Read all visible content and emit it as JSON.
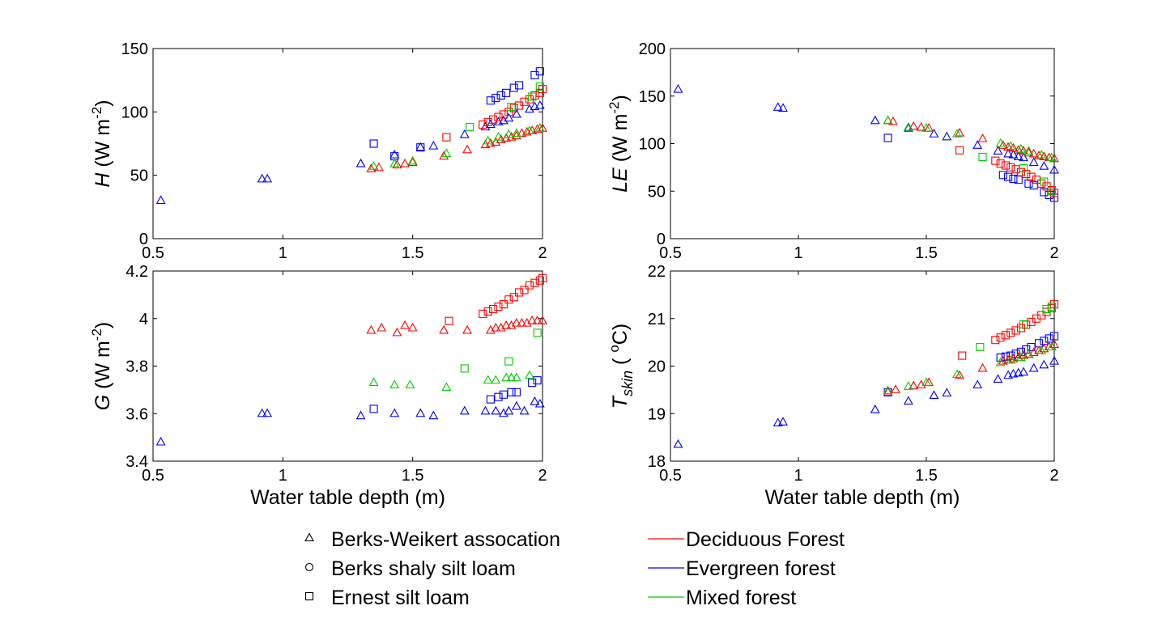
{
  "legend": {
    "soils": [
      {
        "label": "Berks-Weikert assocation",
        "marker": "triangle"
      },
      {
        "label": "Berks shaly silt loam",
        "marker": "circle"
      },
      {
        "label": "Ernest silt loam",
        "marker": "square"
      }
    ],
    "vegetation": [
      {
        "label": "Deciduous Forest",
        "color": "#ff0000"
      },
      {
        "label": "Evergreen forest",
        "color": "#0000ff"
      },
      {
        "label": "Mixed forest",
        "color": "#00cc00"
      }
    ]
  },
  "chart_data": [
    {
      "id": "H",
      "type": "scatter",
      "ylabel_sym": "H",
      "ylabel_unit": " (W m",
      "ylabel_exp": "-2",
      "ylabel_close": ")",
      "xlabel": "",
      "xlim": [
        0.5,
        2
      ],
      "ylim": [
        0,
        150
      ],
      "xticks": [
        0.5,
        1,
        1.5,
        2
      ],
      "xtick_labels": [
        "0.5",
        "1",
        "1.5",
        "2"
      ],
      "yticks": [
        0,
        50,
        100,
        150
      ],
      "ytick_labels": [
        "0",
        "50",
        "100",
        "150"
      ],
      "series": [
        {
          "marker": "triangle",
          "color": "#0000ff",
          "x": [
            0.53,
            0.92,
            0.94,
            1.3,
            1.43,
            1.53,
            1.58,
            1.7,
            1.78,
            1.8,
            1.83,
            1.85,
            1.87,
            1.9,
            1.95,
            1.97,
            1.99
          ],
          "y": [
            30,
            47,
            47,
            59,
            66,
            72,
            73,
            82,
            88,
            90,
            92,
            93,
            95,
            98,
            102,
            104,
            105
          ]
        },
        {
          "marker": "square",
          "color": "#0000ff",
          "x": [
            1.35,
            1.43,
            1.53,
            1.8,
            1.82,
            1.84,
            1.86,
            1.89,
            1.91,
            1.97,
            1.99
          ],
          "y": [
            75,
            65,
            72,
            109,
            111,
            113,
            115,
            119,
            121,
            129,
            132
          ]
        },
        {
          "marker": "triangle",
          "color": "#ff0000",
          "x": [
            1.34,
            1.37,
            1.44,
            1.47,
            1.5,
            1.62,
            1.71,
            1.78,
            1.8,
            1.82,
            1.84,
            1.86,
            1.88,
            1.9,
            1.92,
            1.94,
            1.96,
            1.98,
            2.0
          ],
          "y": [
            55,
            56,
            58,
            59,
            60,
            65,
            70,
            74,
            75,
            76,
            78,
            79,
            80,
            81,
            83,
            84,
            85,
            86,
            87
          ]
        },
        {
          "marker": "square",
          "color": "#ff0000",
          "x": [
            1.63,
            1.77,
            1.79,
            1.81,
            1.83,
            1.85,
            1.87,
            1.89,
            1.91,
            1.93,
            1.95,
            1.97,
            1.99,
            2.0
          ],
          "y": [
            80,
            90,
            92,
            94,
            96,
            98,
            100,
            103,
            105,
            108,
            110,
            113,
            115,
            118
          ]
        },
        {
          "marker": "triangle",
          "color": "#00cc00",
          "x": [
            1.35,
            1.43,
            1.5,
            1.63,
            1.79,
            1.83,
            1.87,
            1.9,
            1.95,
            1.99
          ],
          "y": [
            57,
            59,
            61,
            67,
            77,
            80,
            82,
            83,
            85,
            87
          ]
        },
        {
          "marker": "square",
          "color": "#00cc00",
          "x": [
            1.72,
            1.88,
            1.96,
            1.99
          ],
          "y": [
            88,
            104,
            112,
            120
          ]
        }
      ]
    },
    {
      "id": "LE",
      "type": "scatter",
      "ylabel_sym": "LE",
      "ylabel_unit": " (W m",
      "ylabel_exp": "-2",
      "ylabel_close": ")",
      "xlabel": "",
      "xlim": [
        0.5,
        2
      ],
      "ylim": [
        0,
        200
      ],
      "xticks": [
        0.5,
        1,
        1.5,
        2
      ],
      "xtick_labels": [
        "0.5",
        "1",
        "1.5",
        "2"
      ],
      "yticks": [
        0,
        50,
        100,
        150,
        200
      ],
      "ytick_labels": [
        "0",
        "50",
        "100",
        "150",
        "200"
      ],
      "series": [
        {
          "marker": "triangle",
          "color": "#0000ff",
          "x": [
            0.53,
            0.92,
            0.94,
            1.3,
            1.43,
            1.53,
            1.58,
            1.7,
            1.78,
            1.82,
            1.84,
            1.86,
            1.88,
            1.92,
            1.96,
            2.0
          ],
          "y": [
            157,
            138,
            137,
            124,
            116,
            110,
            107,
            98,
            92,
            89,
            88,
            86,
            85,
            80,
            76,
            72
          ]
        },
        {
          "marker": "square",
          "color": "#0000ff",
          "x": [
            1.35,
            1.8,
            1.82,
            1.84,
            1.86,
            1.9,
            1.92,
            1.96,
            1.98,
            2.0
          ],
          "y": [
            106,
            67,
            65,
            63,
            62,
            58,
            56,
            49,
            46,
            43
          ]
        },
        {
          "marker": "triangle",
          "color": "#ff0000",
          "x": [
            1.35,
            1.37,
            1.45,
            1.48,
            1.51,
            1.63,
            1.72,
            1.8,
            1.82,
            1.84,
            1.86,
            1.88,
            1.9,
            1.92,
            1.94,
            1.96,
            1.98,
            2.0
          ],
          "y": [
            124,
            123,
            118,
            117,
            116,
            111,
            105,
            98,
            96,
            95,
            93,
            92,
            90,
            89,
            87,
            86,
            85,
            84
          ]
        },
        {
          "marker": "square",
          "color": "#ff0000",
          "x": [
            1.63,
            1.77,
            1.79,
            1.81,
            1.83,
            1.85,
            1.87,
            1.89,
            1.91,
            1.93,
            1.95,
            1.97,
            1.99,
            2.0
          ],
          "y": [
            93,
            82,
            79,
            77,
            75,
            73,
            70,
            68,
            65,
            62,
            58,
            55,
            51,
            48
          ]
        },
        {
          "marker": "triangle",
          "color": "#00cc00",
          "x": [
            1.35,
            1.43,
            1.5,
            1.62,
            1.79,
            1.83,
            1.87,
            1.9,
            1.95,
            1.99
          ],
          "y": [
            124,
            117,
            116,
            110,
            100,
            97,
            94,
            92,
            88,
            85
          ]
        },
        {
          "marker": "square",
          "color": "#00cc00",
          "x": [
            1.72,
            1.88,
            1.96,
            1.99
          ],
          "y": [
            86,
            74,
            60,
            50
          ]
        }
      ]
    },
    {
      "id": "G",
      "type": "scatter",
      "ylabel_sym": "G",
      "ylabel_unit": " (W m",
      "ylabel_exp": "-2",
      "ylabel_close": ")",
      "xlabel": "Water table depth (m)",
      "xlim": [
        0.5,
        2
      ],
      "ylim": [
        3.4,
        4.2
      ],
      "xticks": [
        0.5,
        1,
        1.5,
        2
      ],
      "xtick_labels": [
        "0.5",
        "1",
        "1.5",
        "2"
      ],
      "yticks": [
        3.4,
        3.6,
        3.8,
        4.0,
        4.2
      ],
      "ytick_labels": [
        "3.4",
        "3.6",
        "3.8",
        "4",
        "4.2"
      ],
      "series": [
        {
          "marker": "triangle",
          "color": "#0000ff",
          "x": [
            0.53,
            0.92,
            0.94,
            1.3,
            1.43,
            1.53,
            1.58,
            1.7,
            1.78,
            1.82,
            1.85,
            1.87,
            1.9,
            1.93,
            1.97,
            1.99
          ],
          "y": [
            3.48,
            3.6,
            3.6,
            3.59,
            3.6,
            3.6,
            3.59,
            3.61,
            3.61,
            3.61,
            3.6,
            3.61,
            3.63,
            3.61,
            3.65,
            3.64
          ]
        },
        {
          "marker": "square",
          "color": "#0000ff",
          "x": [
            1.35,
            1.8,
            1.83,
            1.85,
            1.88,
            1.9,
            1.96,
            1.98
          ],
          "y": [
            3.62,
            3.66,
            3.67,
            3.68,
            3.69,
            3.69,
            3.73,
            3.74
          ]
        },
        {
          "marker": "triangle",
          "color": "#ff0000",
          "x": [
            1.34,
            1.38,
            1.44,
            1.47,
            1.5,
            1.62,
            1.71,
            1.8,
            1.82,
            1.84,
            1.86,
            1.88,
            1.9,
            1.92,
            1.94,
            1.96,
            1.98,
            2.0
          ],
          "y": [
            3.95,
            3.96,
            3.94,
            3.97,
            3.96,
            3.95,
            3.95,
            3.95,
            3.96,
            3.96,
            3.97,
            3.97,
            3.98,
            3.98,
            3.98,
            3.99,
            3.99,
            3.99
          ]
        },
        {
          "marker": "square",
          "color": "#ff0000",
          "x": [
            1.64,
            1.77,
            1.79,
            1.81,
            1.83,
            1.85,
            1.87,
            1.89,
            1.91,
            1.93,
            1.95,
            1.97,
            1.99,
            2.0
          ],
          "y": [
            3.99,
            4.02,
            4.03,
            4.04,
            4.05,
            4.06,
            4.08,
            4.09,
            4.11,
            4.12,
            4.14,
            4.15,
            4.16,
            4.17
          ]
        },
        {
          "marker": "triangle",
          "color": "#00cc00",
          "x": [
            1.35,
            1.43,
            1.49,
            1.63,
            1.79,
            1.82,
            1.86,
            1.88,
            1.9,
            1.95
          ],
          "y": [
            3.73,
            3.72,
            3.72,
            3.71,
            3.74,
            3.74,
            3.75,
            3.75,
            3.75,
            3.76
          ]
        },
        {
          "marker": "square",
          "color": "#00cc00",
          "x": [
            1.7,
            1.87,
            1.98
          ],
          "y": [
            3.79,
            3.82,
            3.94
          ]
        }
      ]
    },
    {
      "id": "Tskin",
      "type": "scatter",
      "ylabel_sym": "T",
      "ylabel_sub": "skin",
      "ylabel_unit": " ( ",
      "ylabel_exp": "o",
      "ylabel_close": "C)",
      "xlabel": "Water table depth (m)",
      "xlim": [
        0.5,
        2
      ],
      "ylim": [
        18,
        22
      ],
      "xticks": [
        0.5,
        1,
        1.5,
        2
      ],
      "xtick_labels": [
        "0.5",
        "1",
        "1.5",
        "2"
      ],
      "yticks": [
        18,
        19,
        20,
        21,
        22
      ],
      "ytick_labels": [
        "18",
        "19",
        "20",
        "21",
        "22"
      ],
      "series": [
        {
          "marker": "triangle",
          "color": "#0000ff",
          "x": [
            0.53,
            0.92,
            0.94,
            1.3,
            1.43,
            1.53,
            1.58,
            1.7,
            1.78,
            1.82,
            1.84,
            1.86,
            1.88,
            1.92,
            1.96,
            2.0
          ],
          "y": [
            18.35,
            18.8,
            18.82,
            19.08,
            19.26,
            19.38,
            19.43,
            19.6,
            19.72,
            19.8,
            19.83,
            19.85,
            19.87,
            19.95,
            20.02,
            20.1
          ]
        },
        {
          "marker": "square",
          "color": "#0000ff",
          "x": [
            1.35,
            1.79,
            1.81,
            1.83,
            1.85,
            1.87,
            1.89,
            1.91,
            1.94,
            1.96,
            1.98,
            2.0
          ],
          "y": [
            19.45,
            20.18,
            20.2,
            20.22,
            20.26,
            20.3,
            20.35,
            20.4,
            20.48,
            20.53,
            20.58,
            20.63
          ]
        },
        {
          "marker": "triangle",
          "color": "#ff0000",
          "x": [
            1.35,
            1.38,
            1.45,
            1.48,
            1.51,
            1.63,
            1.72,
            1.8,
            1.82,
            1.84,
            1.86,
            1.88,
            1.9,
            1.92,
            1.94,
            1.96,
            1.98,
            2.0
          ],
          "y": [
            19.45,
            19.5,
            19.58,
            19.6,
            19.65,
            19.8,
            19.95,
            20.1,
            20.12,
            20.15,
            20.18,
            20.22,
            20.25,
            20.28,
            20.32,
            20.36,
            20.4,
            20.45
          ]
        },
        {
          "marker": "square",
          "color": "#ff0000",
          "x": [
            1.64,
            1.77,
            1.79,
            1.81,
            1.83,
            1.85,
            1.87,
            1.89,
            1.91,
            1.93,
            1.95,
            1.97,
            1.99,
            2.0
          ],
          "y": [
            20.22,
            20.55,
            20.6,
            20.65,
            20.7,
            20.75,
            20.8,
            20.87,
            20.93,
            21.0,
            21.07,
            21.14,
            21.22,
            21.3
          ]
        },
        {
          "marker": "triangle",
          "color": "#00cc00",
          "x": [
            1.35,
            1.43,
            1.5,
            1.62,
            1.79,
            1.83,
            1.87,
            1.9,
            1.95,
            1.99
          ],
          "y": [
            19.48,
            19.57,
            19.65,
            19.82,
            20.07,
            20.12,
            20.18,
            20.24,
            20.32,
            20.4
          ]
        },
        {
          "marker": "square",
          "color": "#00cc00",
          "x": [
            1.71,
            1.88,
            1.97,
            1.99
          ],
          "y": [
            20.4,
            20.88,
            21.2,
            21.25
          ]
        }
      ]
    }
  ]
}
